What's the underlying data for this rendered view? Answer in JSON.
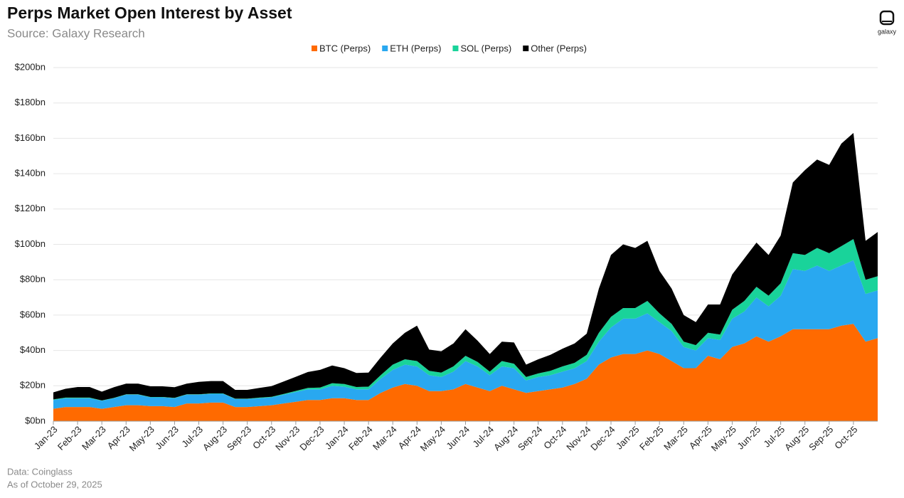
{
  "header": {
    "logo_text": "galaxy"
  },
  "chart_data": {
    "type": "stacked-area",
    "title": "Perps Market Open Interest by Asset",
    "subtitle": "Source: Galaxy Research",
    "footer": [
      "Data: Coinglass",
      "As of October 29, 2025"
    ],
    "categories": [
      "Jan-23",
      null,
      "Feb-23",
      null,
      "Mar-23",
      null,
      "Apr-23",
      null,
      "May-23",
      null,
      "Jun-23",
      null,
      "Jul-23",
      null,
      "Aug-23",
      null,
      "Sep-23",
      null,
      "Oct-23",
      null,
      "Nov-23",
      null,
      "Dec-23",
      null,
      "Jan-24",
      null,
      "Feb-24",
      null,
      "Mar-24",
      null,
      "Apr-24",
      null,
      "May-24",
      null,
      "Jun-24",
      null,
      "Jul-24",
      null,
      "Aug-24",
      null,
      "Sep-24",
      null,
      "Oct-24",
      null,
      "Nov-24",
      null,
      "Dec-24",
      null,
      "Jan-25",
      null,
      "Feb-25",
      null,
      "Mar-25",
      null,
      "Apr-25",
      null,
      "May-25",
      null,
      "Jun-25",
      null,
      "Jul-25",
      null,
      "Aug-25",
      null,
      "Sep-25",
      null,
      "Oct-25",
      null,
      null
    ],
    "series": [
      {
        "name": "BTC (Perps)",
        "color": "#ff6a00",
        "values": [
          7,
          8,
          8,
          8,
          7,
          8,
          9,
          9,
          8.5,
          8.5,
          8,
          10,
          10,
          10.5,
          10.5,
          8,
          8,
          8.5,
          9,
          10,
          11,
          12,
          12,
          13,
          13,
          12,
          12,
          16,
          19,
          21,
          20,
          17,
          17,
          18,
          21,
          19,
          17,
          20,
          18,
          16,
          17,
          18,
          19,
          21,
          24,
          32,
          36,
          38,
          38,
          40,
          38,
          34,
          30,
          30,
          37,
          35,
          42,
          44,
          48,
          45,
          48,
          52,
          52,
          52,
          52,
          54,
          55,
          45,
          47
        ]
      },
      {
        "name": "ETH (Perps)",
        "color": "#29a8f0",
        "values": [
          5,
          5,
          5,
          5,
          4.5,
          5,
          6,
          6,
          5,
          5,
          5,
          5,
          5,
          5,
          5,
          4.5,
          4.5,
          4.5,
          4.5,
          5,
          5.5,
          6,
          6,
          7,
          6.5,
          6,
          6,
          8,
          10,
          11,
          11,
          9,
          8,
          10,
          13,
          12,
          9,
          11,
          12,
          7,
          8,
          8,
          9,
          9,
          10,
          13,
          17,
          20,
          20,
          21,
          18,
          17,
          12,
          10,
          10,
          11,
          16,
          18,
          22,
          20,
          23,
          34,
          33,
          36,
          33,
          34,
          36,
          27,
          27
        ]
      },
      {
        "name": "SOL (Perps)",
        "color": "#19d39a",
        "values": [
          0.3,
          0.3,
          0.3,
          0.3,
          0.2,
          0.2,
          0.2,
          0.2,
          0.2,
          0.2,
          0.2,
          0.2,
          0.2,
          0.2,
          0.2,
          0.2,
          0.2,
          0.3,
          0.3,
          0.4,
          0.6,
          0.8,
          1,
          1.5,
          1.5,
          1.3,
          1.5,
          2,
          3,
          3,
          3,
          2.5,
          2.5,
          3,
          3,
          2.5,
          2,
          3,
          2.5,
          2,
          2,
          2.5,
          3,
          3,
          3.5,
          5,
          6,
          6,
          6,
          7,
          5,
          4,
          3,
          3,
          3,
          3,
          5,
          6,
          6,
          6,
          7,
          9,
          9,
          10,
          10,
          11,
          12,
          8,
          8
        ]
      },
      {
        "name": "Other (Perps)",
        "color": "#000000",
        "values": [
          4,
          5,
          6,
          6,
          5,
          6,
          6,
          6,
          6,
          6,
          6,
          6,
          7,
          7,
          7,
          5,
          5,
          5.5,
          6,
          7,
          8,
          9,
          10,
          10,
          9,
          8,
          8,
          10,
          12,
          15,
          20,
          12,
          12,
          13,
          15,
          12,
          10,
          11,
          12,
          7,
          8,
          9,
          10,
          11,
          12,
          25,
          35,
          36,
          34,
          34,
          24,
          20,
          15,
          13,
          16,
          17,
          20,
          24,
          25,
          23,
          27,
          40,
          48,
          50,
          50,
          58,
          60,
          22,
          25
        ]
      }
    ],
    "ylim": [
      0,
      200
    ],
    "yticks": [
      {
        "value": 0,
        "label": "$0bn"
      },
      {
        "value": 20,
        "label": "$20bn"
      },
      {
        "value": 40,
        "label": "$40bn"
      },
      {
        "value": 60,
        "label": "$60bn"
      },
      {
        "value": 80,
        "label": "$80bn"
      },
      {
        "value": 100,
        "label": "$100bn"
      },
      {
        "value": 120,
        "label": "$120bn"
      },
      {
        "value": 140,
        "label": "$140bn"
      },
      {
        "value": 160,
        "label": "$160bn"
      },
      {
        "value": 180,
        "label": "$180bn"
      },
      {
        "value": 200,
        "label": "$200bn"
      }
    ],
    "grid": true,
    "legend": "top"
  }
}
